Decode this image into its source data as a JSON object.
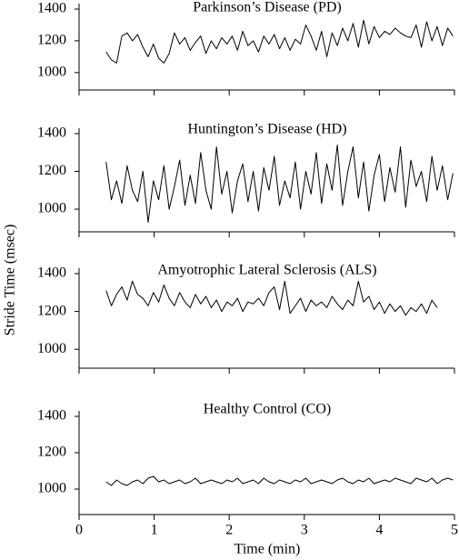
{
  "ylabel": "Stride Time (msec)",
  "xlabel": "Time (min)",
  "chart_data": [
    {
      "type": "line",
      "title": "Parkinson’s Disease (PD)",
      "xlim": [
        0,
        5
      ],
      "xticks": [
        0,
        1,
        2,
        3,
        4,
        5
      ],
      "ylim": [
        890,
        1400
      ],
      "yticks": [
        1000,
        1200,
        1400
      ],
      "color": "#000000",
      "x": [
        0.36,
        0.43,
        0.5,
        0.57,
        0.64,
        0.71,
        0.78,
        0.85,
        0.92,
        0.99,
        1.06,
        1.13,
        1.2,
        1.27,
        1.34,
        1.41,
        1.48,
        1.55,
        1.62,
        1.69,
        1.76,
        1.83,
        1.9,
        1.97,
        2.04,
        2.11,
        2.18,
        2.25,
        2.32,
        2.39,
        2.46,
        2.53,
        2.6,
        2.67,
        2.74,
        2.81,
        2.88,
        2.95,
        3.02,
        3.09,
        3.16,
        3.23,
        3.3,
        3.37,
        3.44,
        3.51,
        3.58,
        3.65,
        3.72,
        3.79,
        3.86,
        3.93,
        4.0,
        4.07,
        4.14,
        4.21,
        4.28,
        4.35,
        4.42,
        4.49,
        4.56,
        4.63,
        4.7,
        4.77,
        4.84,
        4.91,
        4.98
      ],
      "values": [
        1130,
        1080,
        1060,
        1230,
        1250,
        1200,
        1240,
        1160,
        1100,
        1180,
        1090,
        1060,
        1120,
        1250,
        1180,
        1220,
        1140,
        1190,
        1230,
        1120,
        1200,
        1150,
        1220,
        1180,
        1230,
        1140,
        1260,
        1170,
        1200,
        1130,
        1230,
        1180,
        1240,
        1150,
        1220,
        1140,
        1210,
        1180,
        1300,
        1230,
        1140,
        1260,
        1100,
        1250,
        1170,
        1280,
        1200,
        1310,
        1160,
        1330,
        1180,
        1290,
        1220,
        1260,
        1240,
        1280,
        1250,
        1230,
        1220,
        1300,
        1160,
        1320,
        1200,
        1290,
        1170,
        1280,
        1230
      ]
    },
    {
      "type": "line",
      "title": "Huntington’s Disease (HD)",
      "xlim": [
        0,
        5
      ],
      "xticks": [
        0,
        1,
        2,
        3,
        4,
        5
      ],
      "ylim": [
        880,
        1400
      ],
      "yticks": [
        1000,
        1200,
        1400
      ],
      "color": "#000000",
      "x": [
        0.36,
        0.43,
        0.5,
        0.57,
        0.64,
        0.71,
        0.78,
        0.85,
        0.92,
        0.99,
        1.06,
        1.13,
        1.2,
        1.27,
        1.34,
        1.41,
        1.48,
        1.55,
        1.62,
        1.69,
        1.76,
        1.83,
        1.9,
        1.97,
        2.04,
        2.11,
        2.18,
        2.25,
        2.32,
        2.39,
        2.46,
        2.53,
        2.6,
        2.67,
        2.74,
        2.81,
        2.88,
        2.95,
        3.02,
        3.09,
        3.16,
        3.23,
        3.3,
        3.37,
        3.44,
        3.51,
        3.58,
        3.65,
        3.72,
        3.79,
        3.86,
        3.93,
        4.0,
        4.07,
        4.14,
        4.21,
        4.28,
        4.35,
        4.42,
        4.49,
        4.56,
        4.63,
        4.7,
        4.77,
        4.84,
        4.91,
        4.98
      ],
      "values": [
        1250,
        1050,
        1150,
        1030,
        1230,
        1100,
        1040,
        1200,
        930,
        1150,
        1050,
        1230,
        1000,
        1120,
        1260,
        1020,
        1180,
        1030,
        1300,
        1100,
        1000,
        1330,
        1080,
        1200,
        980,
        1150,
        1240,
        1040,
        1200,
        990,
        1220,
        1100,
        1280,
        1020,
        1150,
        1060,
        1250,
        1000,
        1200,
        1080,
        1300,
        1030,
        1240,
        1100,
        1340,
        1020,
        1200,
        1330,
        1060,
        1250,
        990,
        1180,
        1290,
        1040,
        1220,
        1090,
        1330,
        1010,
        1260,
        1120,
        1200,
        1040,
        1280,
        1100,
        1230,
        1050,
        1190
      ]
    },
    {
      "type": "line",
      "title": "Amyotrophic Lateral Sclerosis (ALS)",
      "xlim": [
        0,
        5
      ],
      "xticks": [
        0,
        1,
        2,
        3,
        4,
        5
      ],
      "ylim": [
        900,
        1400
      ],
      "yticks": [
        1000,
        1200,
        1400
      ],
      "color": "#000000",
      "x": [
        0.36,
        0.43,
        0.5,
        0.57,
        0.64,
        0.71,
        0.78,
        0.85,
        0.92,
        0.99,
        1.06,
        1.13,
        1.2,
        1.27,
        1.34,
        1.41,
        1.48,
        1.55,
        1.62,
        1.69,
        1.76,
        1.83,
        1.9,
        1.97,
        2.04,
        2.11,
        2.18,
        2.25,
        2.32,
        2.39,
        2.46,
        2.53,
        2.6,
        2.67,
        2.74,
        2.81,
        2.88,
        2.95,
        3.02,
        3.09,
        3.16,
        3.23,
        3.3,
        3.37,
        3.44,
        3.51,
        3.58,
        3.65,
        3.72,
        3.79,
        3.86,
        3.93,
        4.0,
        4.07,
        4.14,
        4.21,
        4.28,
        4.35,
        4.42,
        4.49,
        4.56,
        4.63,
        4.7,
        4.77
      ],
      "values": [
        1310,
        1230,
        1290,
        1330,
        1260,
        1360,
        1290,
        1270,
        1230,
        1300,
        1250,
        1340,
        1270,
        1230,
        1300,
        1250,
        1220,
        1290,
        1240,
        1280,
        1220,
        1260,
        1200,
        1250,
        1230,
        1270,
        1200,
        1250,
        1240,
        1270,
        1230,
        1300,
        1330,
        1210,
        1360,
        1190,
        1230,
        1270,
        1200,
        1260,
        1230,
        1250,
        1220,
        1280,
        1240,
        1210,
        1260,
        1230,
        1360,
        1250,
        1280,
        1210,
        1250,
        1190,
        1240,
        1200,
        1230,
        1180,
        1220,
        1200,
        1240,
        1190,
        1260,
        1220
      ]
    },
    {
      "type": "line",
      "title": "Healthy Control (CO)",
      "xlim": [
        0,
        5
      ],
      "xticks": [
        0,
        1,
        2,
        3,
        4,
        5
      ],
      "ylim": [
        860,
        1400
      ],
      "yticks": [
        1000,
        1200,
        1400
      ],
      "color": "#000000",
      "show_xtick_labels": true,
      "x": [
        0.36,
        0.43,
        0.5,
        0.57,
        0.64,
        0.71,
        0.78,
        0.85,
        0.92,
        0.99,
        1.06,
        1.13,
        1.2,
        1.27,
        1.34,
        1.41,
        1.48,
        1.55,
        1.62,
        1.69,
        1.76,
        1.83,
        1.9,
        1.97,
        2.04,
        2.11,
        2.18,
        2.25,
        2.32,
        2.39,
        2.46,
        2.53,
        2.6,
        2.67,
        2.74,
        2.81,
        2.88,
        2.95,
        3.02,
        3.09,
        3.16,
        3.23,
        3.3,
        3.37,
        3.44,
        3.51,
        3.58,
        3.65,
        3.72,
        3.79,
        3.86,
        3.93,
        4.0,
        4.07,
        4.14,
        4.21,
        4.28,
        4.35,
        4.42,
        4.49,
        4.56,
        4.63,
        4.7,
        4.77,
        4.84,
        4.91,
        4.98
      ],
      "values": [
        1040,
        1020,
        1050,
        1030,
        1020,
        1040,
        1050,
        1030,
        1060,
        1070,
        1040,
        1050,
        1030,
        1040,
        1050,
        1030,
        1040,
        1060,
        1030,
        1040,
        1050,
        1040,
        1030,
        1050,
        1040,
        1060,
        1030,
        1040,
        1050,
        1030,
        1060,
        1040,
        1030,
        1050,
        1040,
        1030,
        1050,
        1040,
        1060,
        1030,
        1040,
        1050,
        1040,
        1030,
        1050,
        1060,
        1040,
        1030,
        1050,
        1040,
        1060,
        1030,
        1040,
        1050,
        1040,
        1060,
        1050,
        1040,
        1030,
        1060,
        1050,
        1040,
        1060,
        1030,
        1050,
        1060,
        1050
      ]
    }
  ]
}
